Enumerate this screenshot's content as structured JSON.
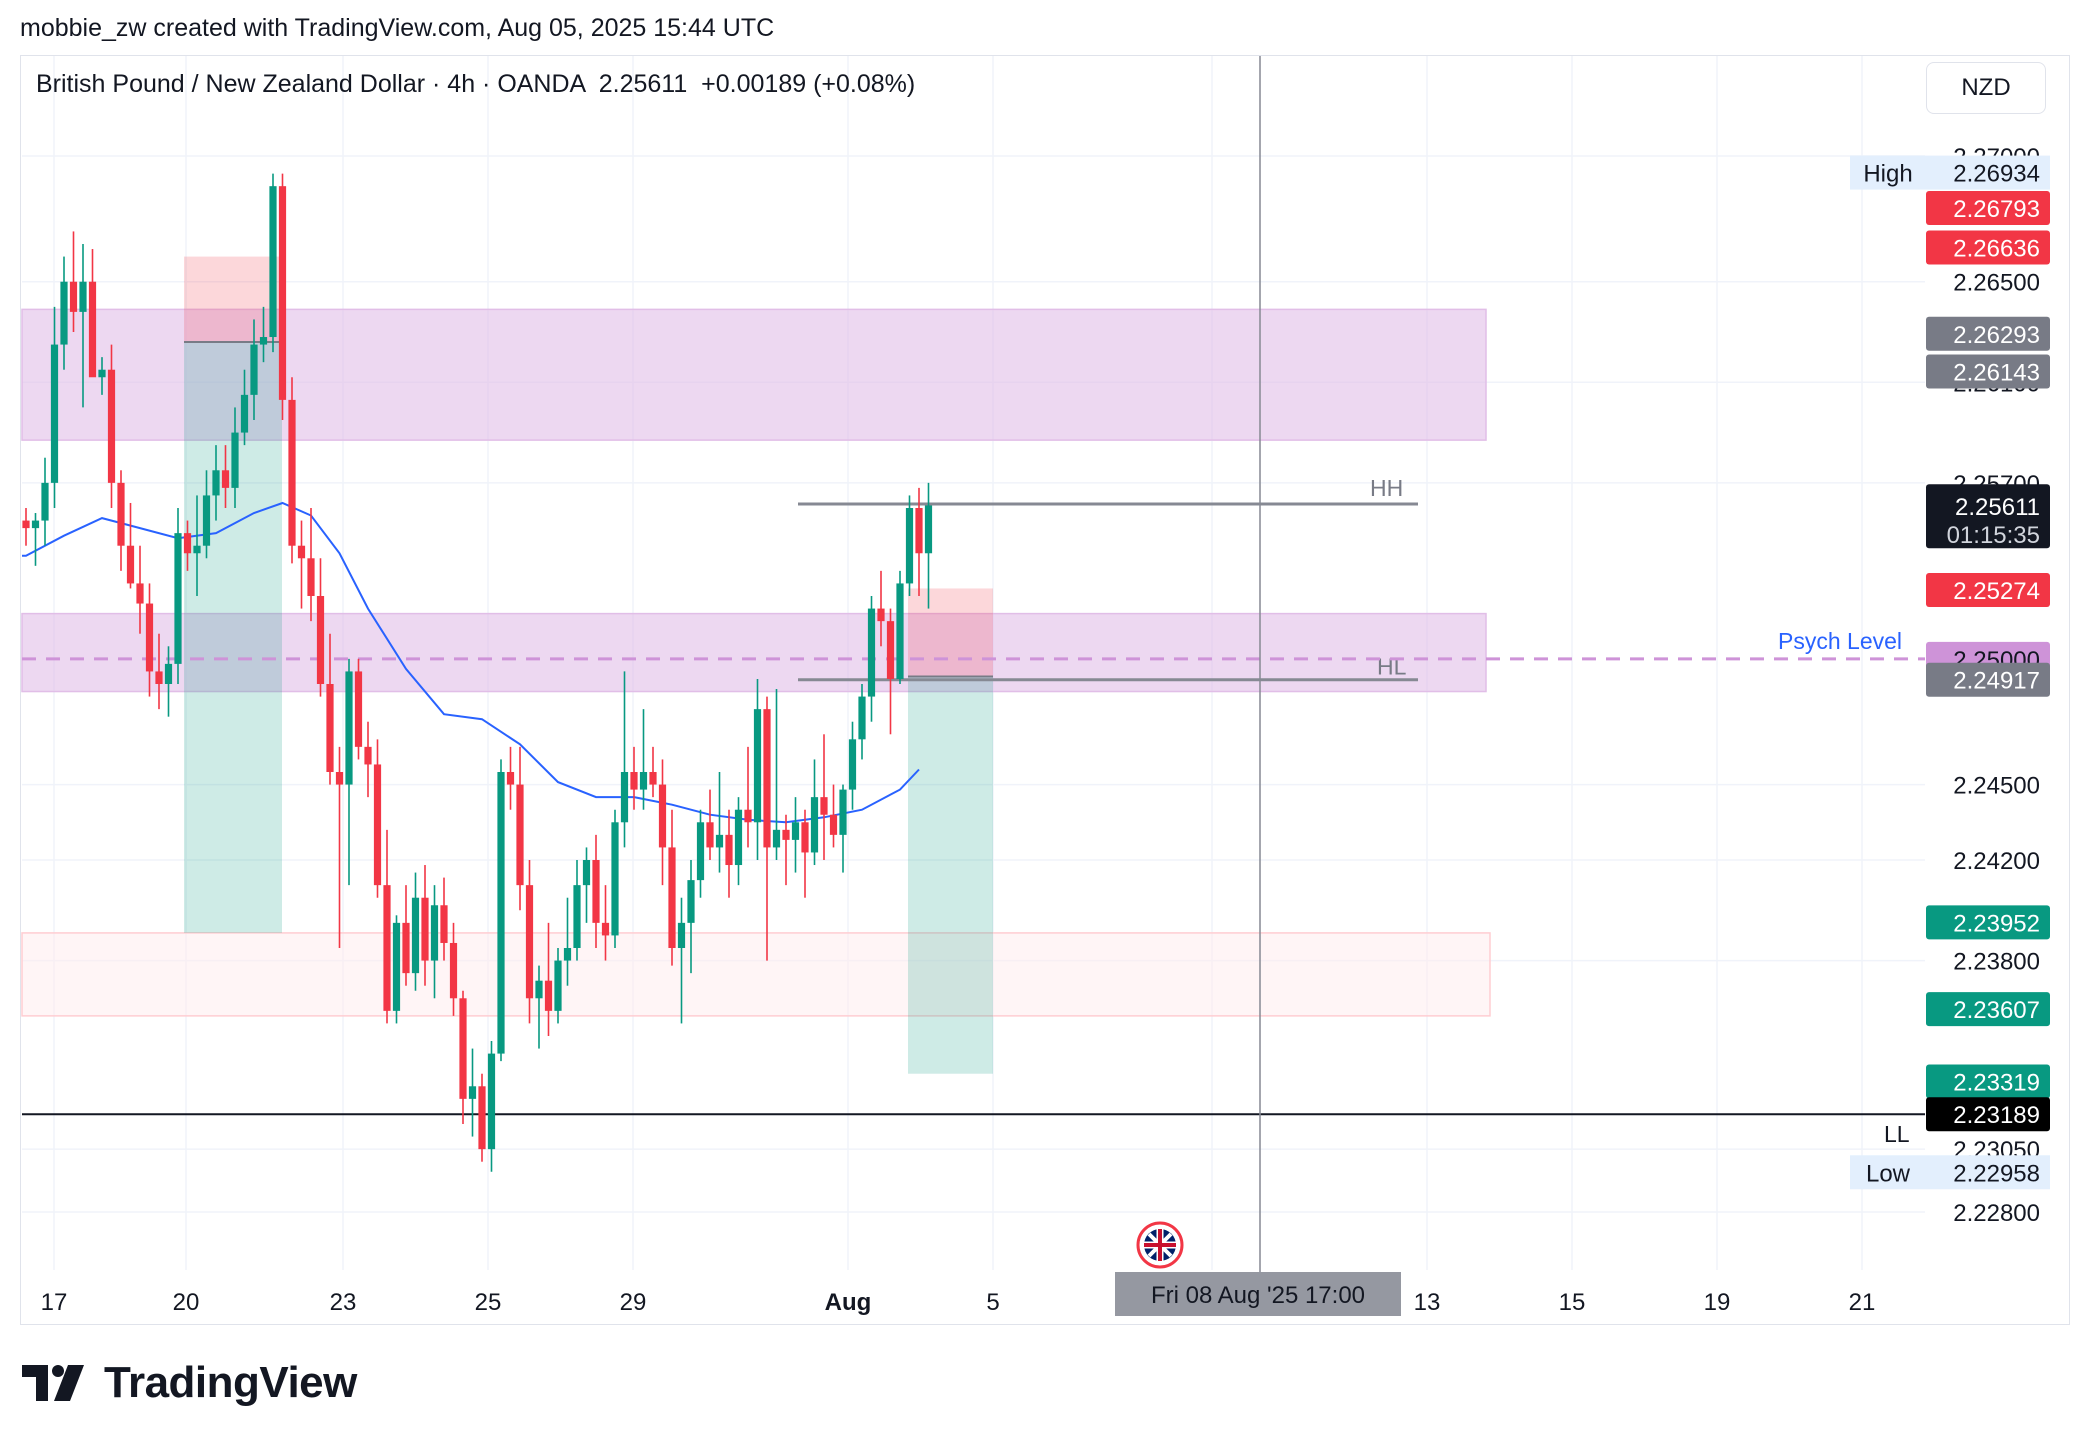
{
  "header": {
    "credit": "mobbie_zw created with TradingView.com, Aug 05, 2025 15:44 UTC"
  },
  "legend": {
    "symbol": "British Pound / New Zealand Dollar · 4h · OANDA",
    "last": "2.25611",
    "change": "+0.00189 (+0.08%)"
  },
  "currency_button": "NZD",
  "brand": "TradingView",
  "colors": {
    "up": "#089981",
    "down": "#f23645",
    "ma": "#2962ff",
    "zone": "#e1bee7",
    "grid": "#f0f3fa"
  },
  "chart_data": {
    "type": "candlestick",
    "symbol": "GBPNZD",
    "timeframe": "4h",
    "ylim": [
      2.227,
      2.2715
    ],
    "x_ticks": [
      "17",
      "20",
      "23",
      "25",
      "29",
      "Aug",
      "5",
      "8",
      "13",
      "15",
      "19",
      "21"
    ],
    "y_ticks": [
      "2.27000",
      "2.26500",
      "2.26100",
      "2.25700",
      "2.24500",
      "2.24200",
      "2.23800",
      "2.23050",
      "2.22800"
    ],
    "candles": [
      {
        "o": 2.2555,
        "h": 2.256,
        "l": 2.2545,
        "c": 2.2552
      },
      {
        "o": 2.2552,
        "h": 2.2558,
        "l": 2.2537,
        "c": 2.2555
      },
      {
        "o": 2.2555,
        "h": 2.258,
        "l": 2.2545,
        "c": 2.257
      },
      {
        "o": 2.257,
        "h": 2.264,
        "l": 2.256,
        "c": 2.2625
      },
      {
        "o": 2.2625,
        "h": 2.266,
        "l": 2.2615,
        "c": 2.265
      },
      {
        "o": 2.265,
        "h": 2.267,
        "l": 2.263,
        "c": 2.2638
      },
      {
        "o": 2.2638,
        "h": 2.2665,
        "l": 2.26,
        "c": 2.265
      },
      {
        "o": 2.265,
        "h": 2.2663,
        "l": 2.2615,
        "c": 2.2612
      },
      {
        "o": 2.2612,
        "h": 2.262,
        "l": 2.2605,
        "c": 2.2615
      },
      {
        "o": 2.2615,
        "h": 2.2625,
        "l": 2.256,
        "c": 2.257
      },
      {
        "o": 2.257,
        "h": 2.2575,
        "l": 2.2535,
        "c": 2.2545
      },
      {
        "o": 2.2545,
        "h": 2.2562,
        "l": 2.2528,
        "c": 2.253
      },
      {
        "o": 2.253,
        "h": 2.2545,
        "l": 2.251,
        "c": 2.2522
      },
      {
        "o": 2.2522,
        "h": 2.253,
        "l": 2.2485,
        "c": 2.2495
      },
      {
        "o": 2.2495,
        "h": 2.251,
        "l": 2.248,
        "c": 2.249
      },
      {
        "o": 2.249,
        "h": 2.2505,
        "l": 2.2477,
        "c": 2.2498
      },
      {
        "o": 2.2498,
        "h": 2.256,
        "l": 2.249,
        "c": 2.255
      },
      {
        "o": 2.255,
        "h": 2.2555,
        "l": 2.2535,
        "c": 2.2542
      },
      {
        "o": 2.2542,
        "h": 2.2565,
        "l": 2.2525,
        "c": 2.2545
      },
      {
        "o": 2.2545,
        "h": 2.2575,
        "l": 2.254,
        "c": 2.2565
      },
      {
        "o": 2.2565,
        "h": 2.2585,
        "l": 2.2555,
        "c": 2.2575
      },
      {
        "o": 2.2575,
        "h": 2.2585,
        "l": 2.256,
        "c": 2.2568
      },
      {
        "o": 2.2568,
        "h": 2.26,
        "l": 2.256,
        "c": 2.259
      },
      {
        "o": 2.259,
        "h": 2.2615,
        "l": 2.2585,
        "c": 2.2605
      },
      {
        "o": 2.2605,
        "h": 2.2635,
        "l": 2.2595,
        "c": 2.2625
      },
      {
        "o": 2.2625,
        "h": 2.264,
        "l": 2.2618,
        "c": 2.2628
      },
      {
        "o": 2.2628,
        "h": 2.2693,
        "l": 2.2622,
        "c": 2.2688
      },
      {
        "o": 2.2688,
        "h": 2.2693,
        "l": 2.2595,
        "c": 2.2603
      },
      {
        "o": 2.2603,
        "h": 2.2612,
        "l": 2.2538,
        "c": 2.2545
      },
      {
        "o": 2.2545,
        "h": 2.2555,
        "l": 2.252,
        "c": 2.254
      },
      {
        "o": 2.254,
        "h": 2.256,
        "l": 2.2515,
        "c": 2.2525
      },
      {
        "o": 2.2525,
        "h": 2.254,
        "l": 2.2485,
        "c": 2.249
      },
      {
        "o": 2.249,
        "h": 2.251,
        "l": 2.245,
        "c": 2.2455
      },
      {
        "o": 2.2455,
        "h": 2.2465,
        "l": 2.2385,
        "c": 2.245
      },
      {
        "o": 2.245,
        "h": 2.25,
        "l": 2.241,
        "c": 2.2495
      },
      {
        "o": 2.2495,
        "h": 2.25,
        "l": 2.246,
        "c": 2.2465
      },
      {
        "o": 2.2465,
        "h": 2.2475,
        "l": 2.2445,
        "c": 2.2458
      },
      {
        "o": 2.2458,
        "h": 2.2468,
        "l": 2.2405,
        "c": 2.241
      },
      {
        "o": 2.241,
        "h": 2.2432,
        "l": 2.2355,
        "c": 2.236
      },
      {
        "o": 2.236,
        "h": 2.2398,
        "l": 2.2355,
        "c": 2.2395
      },
      {
        "o": 2.2395,
        "h": 2.241,
        "l": 2.237,
        "c": 2.2375
      },
      {
        "o": 2.2375,
        "h": 2.2415,
        "l": 2.2368,
        "c": 2.2405
      },
      {
        "o": 2.2405,
        "h": 2.2418,
        "l": 2.237,
        "c": 2.238
      },
      {
        "o": 2.238,
        "h": 2.241,
        "l": 2.2365,
        "c": 2.2402
      },
      {
        "o": 2.2402,
        "h": 2.2413,
        "l": 2.238,
        "c": 2.2387
      },
      {
        "o": 2.2387,
        "h": 2.2395,
        "l": 2.2358,
        "c": 2.2365
      },
      {
        "o": 2.2365,
        "h": 2.2368,
        "l": 2.2315,
        "c": 2.2325
      },
      {
        "o": 2.2325,
        "h": 2.2345,
        "l": 2.231,
        "c": 2.233
      },
      {
        "o": 2.233,
        "h": 2.2335,
        "l": 2.23,
        "c": 2.2305
      },
      {
        "o": 2.2305,
        "h": 2.2348,
        "l": 2.2296,
        "c": 2.2343
      },
      {
        "o": 2.2343,
        "h": 2.246,
        "l": 2.234,
        "c": 2.2455
      },
      {
        "o": 2.2455,
        "h": 2.2465,
        "l": 2.244,
        "c": 2.245
      },
      {
        "o": 2.245,
        "h": 2.2465,
        "l": 2.24,
        "c": 2.241
      },
      {
        "o": 2.241,
        "h": 2.242,
        "l": 2.2355,
        "c": 2.2365
      },
      {
        "o": 2.2365,
        "h": 2.2378,
        "l": 2.2345,
        "c": 2.2372
      },
      {
        "o": 2.2372,
        "h": 2.2395,
        "l": 2.235,
        "c": 2.236
      },
      {
        "o": 2.236,
        "h": 2.2385,
        "l": 2.2355,
        "c": 2.238
      },
      {
        "o": 2.238,
        "h": 2.2405,
        "l": 2.237,
        "c": 2.2385
      },
      {
        "o": 2.2385,
        "h": 2.242,
        "l": 2.238,
        "c": 2.241
      },
      {
        "o": 2.241,
        "h": 2.2425,
        "l": 2.2395,
        "c": 2.242
      },
      {
        "o": 2.242,
        "h": 2.243,
        "l": 2.2385,
        "c": 2.2395
      },
      {
        "o": 2.2395,
        "h": 2.241,
        "l": 2.238,
        "c": 2.239
      },
      {
        "o": 2.239,
        "h": 2.244,
        "l": 2.2385,
        "c": 2.2435
      },
      {
        "o": 2.2435,
        "h": 2.2495,
        "l": 2.2425,
        "c": 2.2455
      },
      {
        "o": 2.2455,
        "h": 2.2465,
        "l": 2.244,
        "c": 2.2448
      },
      {
        "o": 2.2448,
        "h": 2.248,
        "l": 2.244,
        "c": 2.2455
      },
      {
        "o": 2.2455,
        "h": 2.2465,
        "l": 2.2445,
        "c": 2.245
      },
      {
        "o": 2.245,
        "h": 2.246,
        "l": 2.241,
        "c": 2.2425
      },
      {
        "o": 2.2425,
        "h": 2.244,
        "l": 2.2378,
        "c": 2.2385
      },
      {
        "o": 2.2385,
        "h": 2.2405,
        "l": 2.2355,
        "c": 2.2395
      },
      {
        "o": 2.2395,
        "h": 2.242,
        "l": 2.2375,
        "c": 2.2412
      },
      {
        "o": 2.2412,
        "h": 2.244,
        "l": 2.2405,
        "c": 2.2435
      },
      {
        "o": 2.2435,
        "h": 2.2448,
        "l": 2.242,
        "c": 2.2425
      },
      {
        "o": 2.2425,
        "h": 2.2455,
        "l": 2.2415,
        "c": 2.243
      },
      {
        "o": 2.243,
        "h": 2.244,
        "l": 2.2405,
        "c": 2.2418
      },
      {
        "o": 2.2418,
        "h": 2.2445,
        "l": 2.241,
        "c": 2.244
      },
      {
        "o": 2.244,
        "h": 2.2465,
        "l": 2.2425,
        "c": 2.2435
      },
      {
        "o": 2.2435,
        "h": 2.2492,
        "l": 2.242,
        "c": 2.248
      },
      {
        "o": 2.248,
        "h": 2.2485,
        "l": 2.238,
        "c": 2.2425
      },
      {
        "o": 2.2425,
        "h": 2.2488,
        "l": 2.242,
        "c": 2.2432
      },
      {
        "o": 2.2432,
        "h": 2.2438,
        "l": 2.241,
        "c": 2.2428
      },
      {
        "o": 2.2428,
        "h": 2.2445,
        "l": 2.2415,
        "c": 2.2435
      },
      {
        "o": 2.2435,
        "h": 2.244,
        "l": 2.2405,
        "c": 2.2423
      },
      {
        "o": 2.2423,
        "h": 2.246,
        "l": 2.2418,
        "c": 2.2445
      },
      {
        "o": 2.2445,
        "h": 2.247,
        "l": 2.242,
        "c": 2.2438
      },
      {
        "o": 2.2438,
        "h": 2.245,
        "l": 2.2425,
        "c": 2.243
      },
      {
        "o": 2.243,
        "h": 2.245,
        "l": 2.2415,
        "c": 2.2448
      },
      {
        "o": 2.2448,
        "h": 2.2475,
        "l": 2.244,
        "c": 2.2468
      },
      {
        "o": 2.2468,
        "h": 2.249,
        "l": 2.246,
        "c": 2.2485
      },
      {
        "o": 2.2485,
        "h": 2.2525,
        "l": 2.2475,
        "c": 2.252
      },
      {
        "o": 2.252,
        "h": 2.2535,
        "l": 2.2505,
        "c": 2.2515
      },
      {
        "o": 2.2515,
        "h": 2.252,
        "l": 2.247,
        "c": 2.2492
      },
      {
        "o": 2.2492,
        "h": 2.2535,
        "l": 2.249,
        "c": 2.253
      },
      {
        "o": 2.253,
        "h": 2.2565,
        "l": 2.2525,
        "c": 2.256
      },
      {
        "o": 2.256,
        "h": 2.2568,
        "l": 2.2525,
        "c": 2.2542
      },
      {
        "o": 2.2542,
        "h": 2.257,
        "l": 2.252,
        "c": 2.2561
      }
    ],
    "moving_average": [
      {
        "i": 0,
        "v": 2.2541
      },
      {
        "i": 4,
        "v": 2.2549
      },
      {
        "i": 8,
        "v": 2.2556
      },
      {
        "i": 12,
        "v": 2.2552
      },
      {
        "i": 16,
        "v": 2.2548
      },
      {
        "i": 20,
        "v": 2.255
      },
      {
        "i": 24,
        "v": 2.2558
      },
      {
        "i": 27,
        "v": 2.2562
      },
      {
        "i": 30,
        "v": 2.2557
      },
      {
        "i": 33,
        "v": 2.2542
      },
      {
        "i": 36,
        "v": 2.252
      },
      {
        "i": 40,
        "v": 2.2496
      },
      {
        "i": 44,
        "v": 2.2478
      },
      {
        "i": 48,
        "v": 2.2476
      },
      {
        "i": 52,
        "v": 2.2466
      },
      {
        "i": 56,
        "v": 2.2451
      },
      {
        "i": 60,
        "v": 2.2445
      },
      {
        "i": 64,
        "v": 2.2445
      },
      {
        "i": 68,
        "v": 2.2442
      },
      {
        "i": 72,
        "v": 2.2438
      },
      {
        "i": 76,
        "v": 2.2436
      },
      {
        "i": 80,
        "v": 2.2435
      },
      {
        "i": 84,
        "v": 2.2437
      },
      {
        "i": 88,
        "v": 2.244
      },
      {
        "i": 92,
        "v": 2.2448
      },
      {
        "i": 94,
        "v": 2.2456
      }
    ],
    "zones": [
      {
        "name": "supply-zone",
        "from": 2.2587,
        "to": 2.2639,
        "color": "#e1bee7"
      },
      {
        "name": "psych-zone",
        "from": 2.2487,
        "to": 2.2518,
        "color": "#e1bee7"
      },
      {
        "name": "demand-zone",
        "from": 2.2358,
        "to": 2.2391,
        "color": "#ffebee"
      }
    ],
    "lines": [
      {
        "name": "HH",
        "label": "HH",
        "price": 2.25616
      },
      {
        "name": "HL",
        "label": "HL",
        "price": 2.24917
      },
      {
        "name": "LL",
        "label": "LL",
        "price": 2.23189
      },
      {
        "name": "psych",
        "label": "Psych Level",
        "price": 2.25
      }
    ],
    "price_labels": [
      {
        "text": "2.26934",
        "price": 2.26934,
        "bg": "#e3effd",
        "fg": "#131722",
        "tag": "High"
      },
      {
        "text": "2.26793",
        "price": 2.26793,
        "bg": "#f23645",
        "fg": "#ffffff"
      },
      {
        "text": "2.26636",
        "price": 2.26636,
        "bg": "#f23645",
        "fg": "#ffffff"
      },
      {
        "text": "2.26293",
        "price": 2.26293,
        "bg": "#787b86",
        "fg": "#ffffff"
      },
      {
        "text": "2.26143",
        "price": 2.26143,
        "bg": "#787b86",
        "fg": "#ffffff"
      },
      {
        "text": "2.25274",
        "price": 2.25274,
        "bg": "#f23645",
        "fg": "#ffffff"
      },
      {
        "text": "2.25000",
        "price": 2.25,
        "bg": "#ce93d8",
        "fg": "#131722"
      },
      {
        "text": "2.24917",
        "price": 2.24917,
        "bg": "#787b86",
        "fg": "#ffffff"
      },
      {
        "text": "2.23952",
        "price": 2.23952,
        "bg": "#089981",
        "fg": "#ffffff"
      },
      {
        "text": "2.23607",
        "price": 2.23607,
        "bg": "#089981",
        "fg": "#ffffff"
      },
      {
        "text": "2.23319",
        "price": 2.23319,
        "bg": "#089981",
        "fg": "#ffffff"
      },
      {
        "text": "2.23189",
        "price": 2.23189,
        "bg": "#000000",
        "fg": "#ffffff"
      },
      {
        "text": "2.22958",
        "price": 2.22958,
        "bg": "#e3effd",
        "fg": "#131722",
        "tag": "Low"
      }
    ],
    "current_price": {
      "price": "2.25611",
      "countdown": "01:15:35"
    },
    "crosshair_time": "Fri 08 Aug '25   17:00",
    "positions": [
      {
        "name": "long-position-1",
        "entry": 2.2626,
        "stop": 2.266,
        "target": 2.2391
      },
      {
        "name": "long-position-2",
        "entry": 2.2493,
        "stop": 2.2528,
        "target": 2.2335
      }
    ]
  }
}
